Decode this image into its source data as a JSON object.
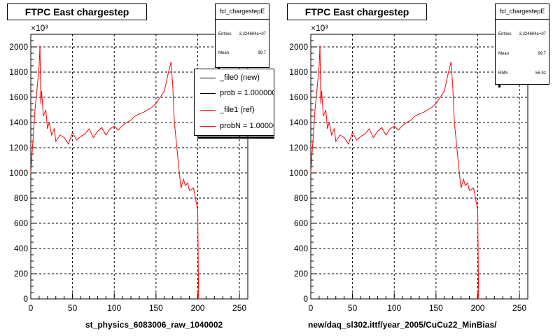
{
  "colors": {
    "ref": "#ff0000",
    "new": "#000000",
    "axis": "#000000",
    "grid": "#000000"
  },
  "panels": [
    {
      "title": "FTPC East chargestep",
      "xlabel": "st_physics_6083006_raw_1040002",
      "stats": {
        "name": "fcl_chargestepE",
        "rows": [
          {
            "label": "Entries",
            "value": "3.324604e+07"
          },
          {
            "label": "Mean",
            "value": "99.7"
          }
        ]
      },
      "legend": [
        {
          "label": "_file0 (new)",
          "color": "#000000"
        },
        {
          "label": "prob = 1.000000",
          "color": "#000000"
        },
        {
          "label": "_file1 (ref)",
          "color": "#ff0000"
        },
        {
          "label": "probN = 1.000000",
          "color": "#ff0000"
        }
      ]
    },
    {
      "title": "FTPC East chargestep",
      "xlabel": "new/daq_sl302.ittf/year_2005/CuCu22_MinBias/",
      "stats": {
        "name": "fcl_chargestepE",
        "rows": [
          {
            "label": "Entries",
            "value": "3.324604e+07"
          },
          {
            "label": "Mean",
            "value": "99.7"
          },
          {
            "label": "RMS",
            "value": "55.92"
          }
        ]
      }
    }
  ],
  "chart_data": [
    {
      "type": "line",
      "title": "FTPC East chargestep",
      "xlabel": "st_physics_6083006_raw_1040002",
      "ylabel": "",
      "xlim": [
        0,
        260
      ],
      "ylim": [
        0,
        2100
      ],
      "y_multiplier": "×10³",
      "xticks": [
        0,
        50,
        100,
        150,
        200,
        250
      ],
      "yticks": [
        0,
        200,
        400,
        600,
        800,
        1000,
        1200,
        1400,
        1600,
        1800,
        2000
      ],
      "grid": true,
      "legend_position": "top-right",
      "series": [
        {
          "name": "_file1 (ref)",
          "color": "#ff0000",
          "x": [
            0,
            5,
            8,
            10,
            11,
            12,
            13,
            15,
            18,
            20,
            22,
            25,
            28,
            30,
            35,
            40,
            45,
            50,
            55,
            60,
            65,
            70,
            75,
            80,
            85,
            90,
            95,
            100,
            105,
            110,
            115,
            120,
            125,
            130,
            135,
            140,
            145,
            150,
            155,
            160,
            165,
            168,
            170,
            172,
            175,
            178,
            180,
            183,
            185,
            188,
            190,
            195,
            200,
            201,
            202
          ],
          "y": [
            1000,
            1500,
            1700,
            1850,
            2010,
            1550,
            1650,
            1450,
            1500,
            1350,
            1400,
            1300,
            1350,
            1250,
            1300,
            1280,
            1230,
            1320,
            1260,
            1290,
            1310,
            1350,
            1280,
            1330,
            1360,
            1300,
            1350,
            1370,
            1340,
            1380,
            1400,
            1420,
            1450,
            1470,
            1480,
            1500,
            1520,
            1550,
            1600,
            1650,
            1800,
            1880,
            1700,
            1400,
            1200,
            1000,
            880,
            950,
            900,
            920,
            860,
            880,
            700,
            0,
            0
          ]
        },
        {
          "name": "_file0 (new)",
          "color": "#000000",
          "x": [],
          "y": []
        }
      ]
    },
    {
      "type": "line",
      "title": "FTPC East chargestep",
      "xlabel": "new/daq_sl302.ittf/year_2005/CuCu22_MinBias/",
      "ylabel": "",
      "xlim": [
        0,
        260
      ],
      "ylim": [
        0,
        2100
      ],
      "y_multiplier": "×10³",
      "xticks": [
        0,
        50,
        100,
        150,
        200,
        250
      ],
      "yticks": [
        0,
        200,
        400,
        600,
        800,
        1000,
        1200,
        1400,
        1600,
        1800,
        2000
      ],
      "grid": true,
      "series": [
        {
          "name": "fcl_chargestepE",
          "color": "#ff0000",
          "x": [
            0,
            5,
            8,
            10,
            11,
            12,
            13,
            15,
            18,
            20,
            22,
            25,
            28,
            30,
            35,
            40,
            45,
            50,
            55,
            60,
            65,
            70,
            75,
            80,
            85,
            90,
            95,
            100,
            105,
            110,
            115,
            120,
            125,
            130,
            135,
            140,
            145,
            150,
            155,
            160,
            165,
            168,
            170,
            172,
            175,
            178,
            180,
            183,
            185,
            188,
            190,
            195,
            200,
            201,
            202
          ],
          "y": [
            1000,
            1500,
            1700,
            1850,
            2010,
            1550,
            1650,
            1450,
            1500,
            1350,
            1400,
            1300,
            1350,
            1250,
            1300,
            1280,
            1230,
            1320,
            1260,
            1290,
            1310,
            1350,
            1280,
            1330,
            1360,
            1300,
            1350,
            1370,
            1340,
            1380,
            1400,
            1420,
            1450,
            1470,
            1480,
            1500,
            1520,
            1550,
            1600,
            1650,
            1800,
            1880,
            1700,
            1400,
            1200,
            1000,
            880,
            950,
            900,
            920,
            860,
            880,
            700,
            0,
            0
          ]
        }
      ]
    }
  ]
}
